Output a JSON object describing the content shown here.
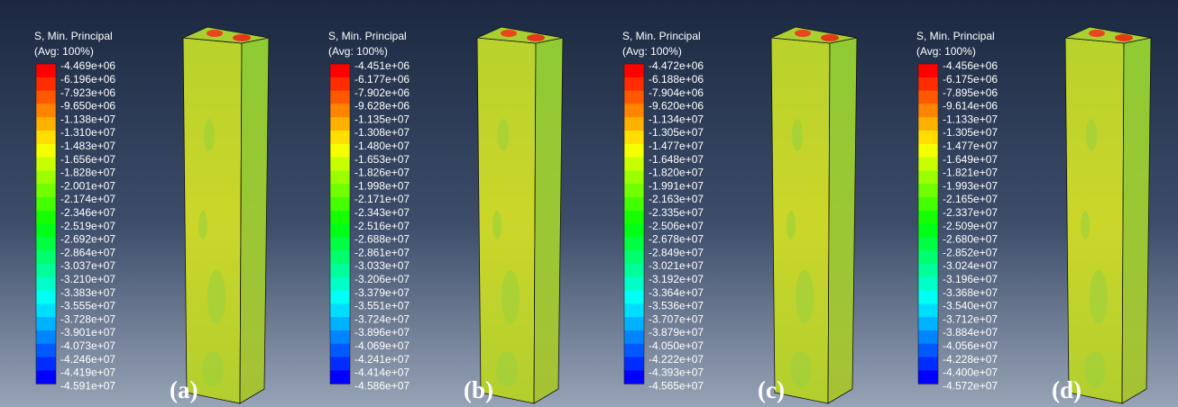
{
  "panels": [
    {
      "title": "S, Min. Principal",
      "subtitle": "(Avg: 100%)",
      "tag": "(a)",
      "legend_labels": [
        "-4.469e+06",
        "-6.196e+06",
        "-7.923e+06",
        "-9.650e+06",
        "-1.138e+07",
        "-1.310e+07",
        "-1.483e+07",
        "-1.656e+07",
        "-1.828e+07",
        "-2.001e+07",
        "-2.174e+07",
        "-2.346e+07",
        "-2.519e+07",
        "-2.692e+07",
        "-2.864e+07",
        "-3.037e+07",
        "-3.210e+07",
        "-3.383e+07",
        "-3.555e+07",
        "-3.728e+07",
        "-3.901e+07",
        "-4.073e+07",
        "-4.246e+07",
        "-4.419e+07",
        "-4.591e+07"
      ]
    },
    {
      "title": "S, Min. Principal",
      "subtitle": "(Avg: 100%)",
      "tag": "(b)",
      "legend_labels": [
        "-4.451e+06",
        "-6.177e+06",
        "-7.902e+06",
        "-9.628e+06",
        "-1.135e+07",
        "-1.308e+07",
        "-1.480e+07",
        "-1.653e+07",
        "-1.826e+07",
        "-1.998e+07",
        "-2.171e+07",
        "-2.343e+07",
        "-2.516e+07",
        "-2.688e+07",
        "-2.861e+07",
        "-3.033e+07",
        "-3.206e+07",
        "-3.379e+07",
        "-3.551e+07",
        "-3.724e+07",
        "-3.896e+07",
        "-4.069e+07",
        "-4.241e+07",
        "-4.414e+07",
        "-4.586e+07"
      ]
    },
    {
      "title": "S, Min. Principal",
      "subtitle": "(Avg: 100%)",
      "tag": "(c)",
      "legend_labels": [
        "-4.472e+06",
        "-6.188e+06",
        "-7.904e+06",
        "-9.620e+06",
        "-1.134e+07",
        "-1.305e+07",
        "-1.477e+07",
        "-1.648e+07",
        "-1.820e+07",
        "-1.991e+07",
        "-2.163e+07",
        "-2.335e+07",
        "-2.506e+07",
        "-2.678e+07",
        "-2.849e+07",
        "-3.021e+07",
        "-3.192e+07",
        "-3.364e+07",
        "-3.536e+07",
        "-3.707e+07",
        "-3.879e+07",
        "-4.050e+07",
        "-4.222e+07",
        "-4.393e+07",
        "-4.565e+07"
      ]
    },
    {
      "title": "S, Min. Principal",
      "subtitle": "(Avg: 100%)",
      "tag": "(d)",
      "legend_labels": [
        "-4.456e+06",
        "-6.175e+06",
        "-7.895e+06",
        "-9.614e+06",
        "-1.133e+07",
        "-1.305e+07",
        "-1.477e+07",
        "-1.649e+07",
        "-1.821e+07",
        "-1.993e+07",
        "-2.165e+07",
        "-2.337e+07",
        "-2.509e+07",
        "-2.680e+07",
        "-2.852e+07",
        "-3.024e+07",
        "-3.196e+07",
        "-3.368e+07",
        "-3.540e+07",
        "-3.712e+07",
        "-3.884e+07",
        "-4.056e+07",
        "-4.228e+07",
        "-4.400e+07",
        "-4.572e+07"
      ]
    }
  ]
}
